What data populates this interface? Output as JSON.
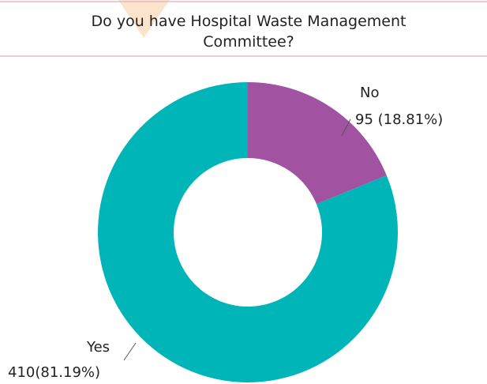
{
  "chart_data": {
    "type": "donut",
    "title": "Do you have Hospital Waste Management Committee?",
    "categories": [
      "No",
      "Yes"
    ],
    "values": [
      95,
      410
    ],
    "value_labels": [
      "95 (18.81%)",
      "410(81.19%)"
    ],
    "colors": [
      "#a153a1",
      "#00b5b8"
    ]
  }
}
